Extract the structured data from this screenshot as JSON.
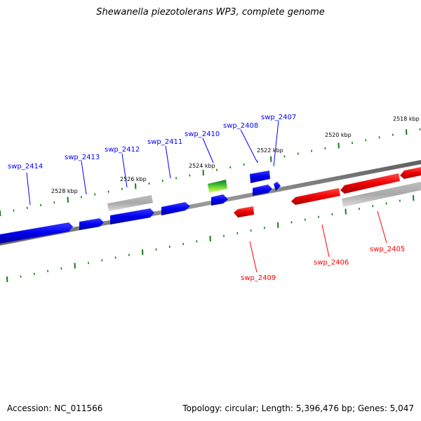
{
  "title": "Shewanella piezotolerans WP3, complete genome",
  "footer": {
    "accession": "Accession: NC_011566",
    "summary": "Topology: circular; Length: 5,396,476 bp; Genes: 5,047"
  },
  "colors": {
    "forward": "#0000ff",
    "reverse": "#ff0000",
    "rna": "#228b22",
    "pseudo": "#a9a9a9",
    "ticks": "#1a7a1a",
    "backbone": "#808080"
  },
  "tick_labels": [
    "2518 kbp",
    "2520 kbp",
    "2522 kbp",
    "2524 kbp",
    "2526 kbp",
    "2528 kbp"
  ],
  "gene_labels": {
    "forward": [
      "swp_2414",
      "swp_2413",
      "swp_2412",
      "swp_2411",
      "swp_2410",
      "swp_2408",
      "swp_2407"
    ],
    "reverse": [
      "swp_2409",
      "swp_2406",
      "swp_2405"
    ]
  }
}
